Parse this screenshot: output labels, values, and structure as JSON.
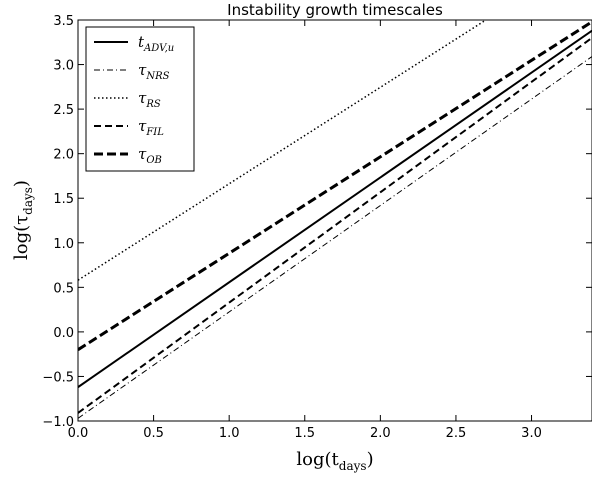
{
  "chart_data": {
    "type": "line",
    "title": "Instability growth timescales",
    "xlabel": {
      "base": "log(t",
      "sub": "days",
      "close": ")"
    },
    "ylabel": {
      "base": "log(τ",
      "sub": "days",
      "close": ")"
    },
    "xlim": [
      0.0,
      3.4
    ],
    "ylim": [
      -1.0,
      3.5
    ],
    "xticks": [
      0.0,
      0.5,
      1.0,
      1.5,
      2.0,
      2.5,
      3.0
    ],
    "xtick_labels": [
      "0.0",
      "0.5",
      "1.0",
      "1.5",
      "2.0",
      "2.5",
      "3.0"
    ],
    "yticks": [
      -1.0,
      -0.5,
      0.0,
      0.5,
      1.0,
      1.5,
      2.0,
      2.5,
      3.0,
      3.5
    ],
    "ytick_labels": [
      "−1.0",
      "−0.5",
      "0.0",
      "0.5",
      "1.0",
      "1.5",
      "2.0",
      "2.5",
      "3.0",
      "3.5"
    ],
    "grid": false,
    "legend_position": "top-left",
    "series": [
      {
        "name": {
          "base": "t",
          "sub": "ADV,u"
        },
        "style": "solid",
        "x": [
          0.0,
          3.4
        ],
        "y": [
          -0.62,
          3.38
        ]
      },
      {
        "name": {
          "base": "τ",
          "sub": "NRS"
        },
        "style": "dashdot",
        "x": [
          0.0,
          3.4
        ],
        "y": [
          -0.97,
          3.09
        ]
      },
      {
        "name": {
          "base": "τ",
          "sub": "RS"
        },
        "style": "dotted",
        "x": [
          0.0,
          3.4
        ],
        "y": [
          0.58,
          4.26
        ]
      },
      {
        "name": {
          "base": "τ",
          "sub": "FIL"
        },
        "style": "dashed",
        "x": [
          0.0,
          3.4
        ],
        "y": [
          -0.91,
          3.3
        ]
      },
      {
        "name": {
          "base": "τ",
          "sub": "OB"
        },
        "style": "dashed-thick",
        "x": [
          0.0,
          3.4
        ],
        "y": [
          -0.2,
          3.48
        ]
      }
    ]
  }
}
